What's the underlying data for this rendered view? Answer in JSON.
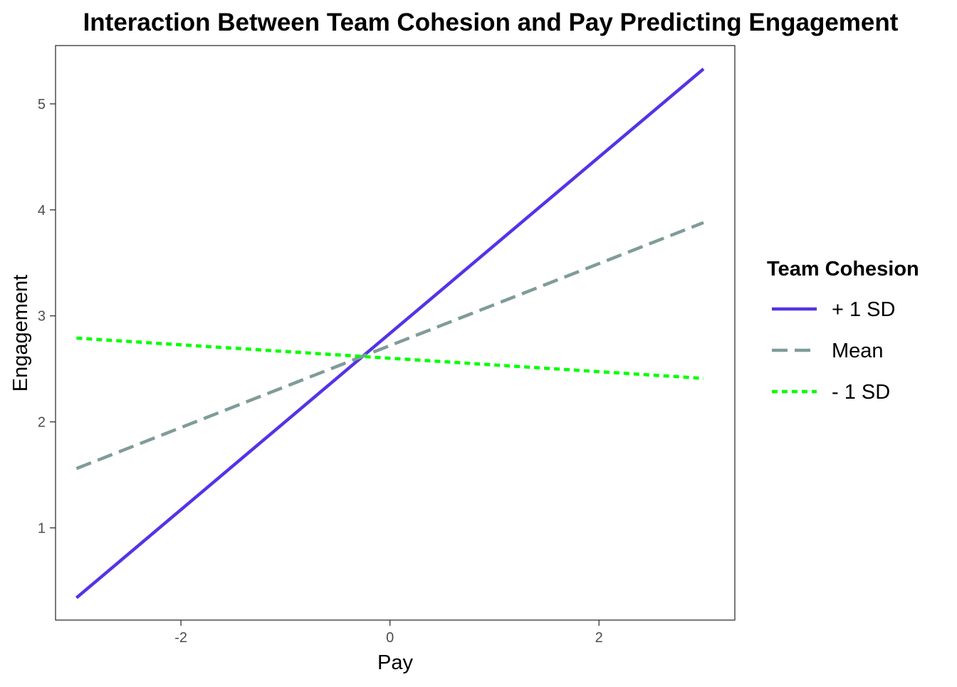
{
  "chart_data": {
    "type": "line",
    "title": "Interaction Between Team Cohesion and Pay Predicting Engagement",
    "xlabel": "Pay",
    "ylabel": "Engagement",
    "xlim": [
      -3.2,
      3.3
    ],
    "ylim": [
      0.13,
      5.55
    ],
    "x_ticks": [
      -2,
      0,
      2
    ],
    "x_tick_labels": [
      "-2",
      "0",
      "2"
    ],
    "y_ticks": [
      1,
      2,
      3,
      4,
      5
    ],
    "y_tick_labels": [
      "1",
      "2",
      "3",
      "4",
      "5"
    ],
    "grid": false,
    "legend": {
      "title": "Team Cohesion",
      "placement": "right"
    },
    "series": [
      {
        "name": "+ 1 SD",
        "color": "#5533e6",
        "dash": "solid",
        "x": [
          -3,
          3
        ],
        "y": [
          0.34,
          5.33
        ]
      },
      {
        "name": "Mean",
        "color": "#7f9c99",
        "dash": "dashed",
        "x": [
          -3,
          3
        ],
        "y": [
          1.56,
          3.88
        ]
      },
      {
        "name": "- 1 SD",
        "color": "#00ff00",
        "dash": "dotted",
        "x": [
          -3,
          3
        ],
        "y": [
          2.79,
          2.41
        ]
      }
    ]
  }
}
